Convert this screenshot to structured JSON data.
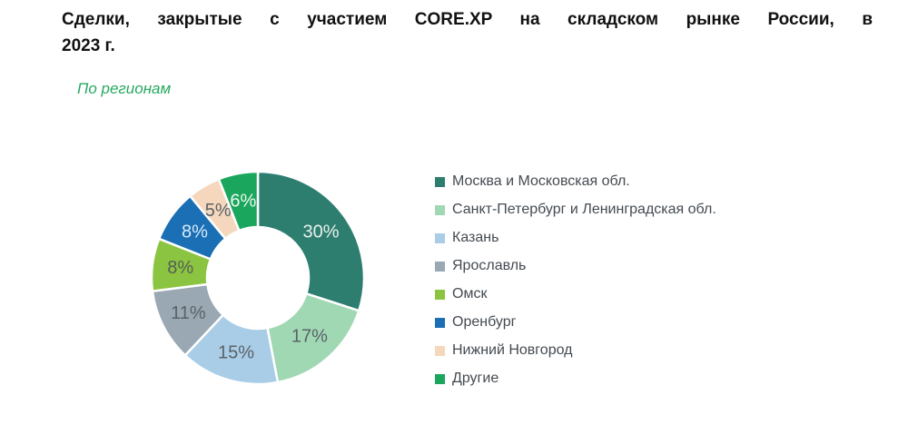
{
  "header": {
    "title": "Сделки, закрытые с участием CORE.XP на складском рынке России, в 2023 г.",
    "title_lines": [
      "Сделки, закрытые с участием CORE.XP на складском рынке России, в",
      "2023 г."
    ],
    "subtitle": "По регионам"
  },
  "colors": {
    "background": "#ffffff",
    "title_text": "#111111",
    "subtitle_green": "#27A862",
    "legend_text": "#444B52",
    "slice_border": "#ffffff",
    "label_gray": "#5A6268"
  },
  "chart_data": {
    "type": "pie",
    "donut": true,
    "title": "По регионам",
    "start_angle_deg": 0,
    "direction": "clockwise",
    "legend_position": "right",
    "grid": false,
    "categories": [
      "Москва и Московская обл.",
      "Санкт-Петербург и Ленинградская обл.",
      "Казань",
      "Ярославль",
      "Омск",
      "Оренбург",
      "Нижний Новгород",
      "Другие"
    ],
    "values": [
      30,
      17,
      15,
      11,
      8,
      8,
      5,
      6
    ],
    "labels": [
      "30%",
      "17%",
      "15%",
      "11%",
      "8%",
      "8%",
      "5%",
      "6%"
    ],
    "slice_colors": [
      "#2E7E70",
      "#A0D8B4",
      "#A9CDE6",
      "#9AA8B3",
      "#8BC440",
      "#1B6FB4",
      "#F4D7BC",
      "#1AA65C"
    ],
    "label_colors": [
      "#E8F0EE",
      "#5A6268",
      "#5A6268",
      "#5A6268",
      "#556057",
      "#D5EAF8",
      "#5A6268",
      "#EDF8F0"
    ]
  }
}
